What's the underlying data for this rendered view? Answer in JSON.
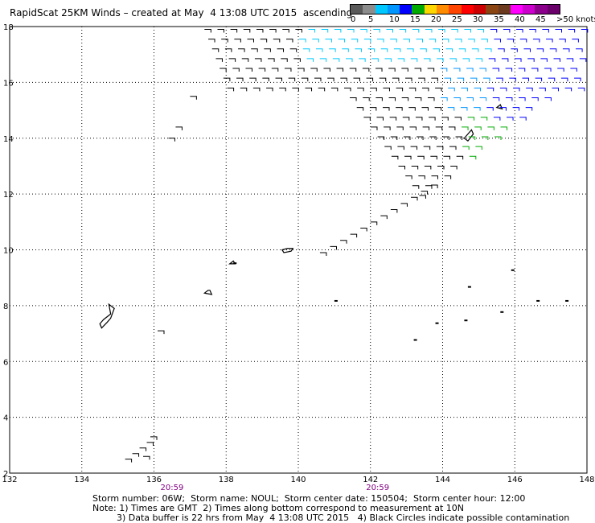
{
  "title": "RapidScat 25KM Winds – created at May  4 13:08 UTC 2015  ascending",
  "legend": {
    "labels": [
      "0",
      "5",
      "10",
      "15",
      "20",
      "25",
      "30",
      "35",
      "40",
      "45",
      ">50 knots"
    ],
    "colors": [
      "#5a5a5a",
      "#8c8c8c",
      "#00c8ff",
      "#0096ff",
      "#0000ff",
      "#00aa00",
      "#ffd700",
      "#ff8c00",
      "#ff4500",
      "#ff0000",
      "#cc0000",
      "#8b4513",
      "#6b3a1f",
      "#ff00ff",
      "#cc00cc",
      "#8b008b",
      "#6a006a"
    ]
  },
  "chart_data": {
    "type": "map",
    "lon_range": [
      132,
      148
    ],
    "lat_range": [
      2,
      18
    ],
    "lon_ticks": [
      "132",
      "134",
      "136",
      "138",
      "140",
      "142",
      "144",
      "146",
      "148"
    ],
    "lat_ticks": [
      "2",
      "4",
      "6",
      "8",
      "10",
      "12",
      "14",
      "16",
      "18"
    ],
    "grid": true,
    "pass_times": [
      {
        "label": "20:59",
        "lon": 136.5
      },
      {
        "label": "20:59",
        "lon": 142.2
      }
    ]
  },
  "footer": {
    "line1": "Storm number: 06W;  Storm name: NOUL;  Storm center date: 150504;  Storm center hour: 12:00",
    "line2": "Note: 1) Times are GMT  2) Times along bottom correspond to measurement at 10N",
    "line3": "3) Data buffer is 22 hrs from May  4 13:08 UTC 2015   4) Black Circles indicate possible contamination"
  }
}
